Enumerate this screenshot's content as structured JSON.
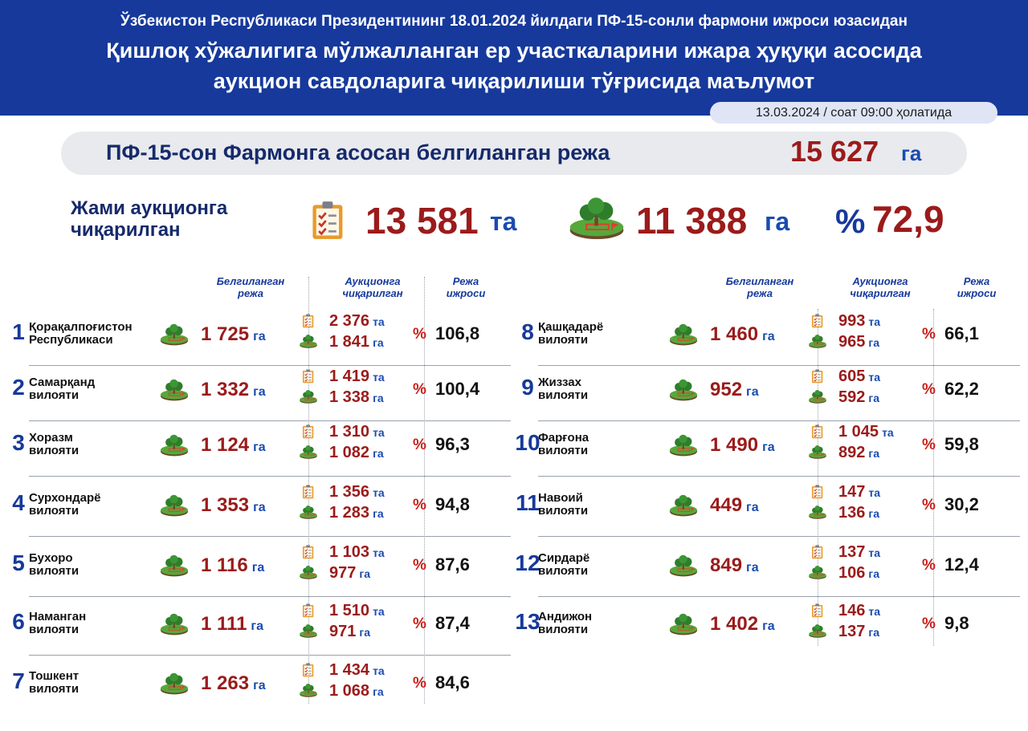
{
  "header": {
    "line1": "Ўзбекистон Республикаси Президентининг 18.01.2024 йилдаги ПФ-15-сонли фармони ижроси юзасидан",
    "line2": "Қишлоқ хўжалигига мўлжалланган ер участкаларини ижара ҳуқуқи асосида",
    "line3": "аукцион савдоларига чиқарилиши тўғрисида маълумот",
    "date": "13.03.2024 / соат 09:00 ҳолатида"
  },
  "plan": {
    "label": "ПФ-15-сон Фармонга асосан белгиланган режа",
    "value": "15 627",
    "unit": "га"
  },
  "summary": {
    "label_line1": "Жами аукционга",
    "label_line2": "чиқарилган",
    "count": "13 581",
    "count_unit": "та",
    "area": "11 388",
    "area_unit": "га",
    "percent_sign": "%",
    "percent": "72,9"
  },
  "columns": {
    "plan_l1": "Белгиланган",
    "plan_l2": "режа",
    "auction_l1": "Аукционга",
    "auction_l2": "чиқарилган",
    "exec_l1": "Режа",
    "exec_l2": "ижроси"
  },
  "icons": {
    "land": "land-plot-icon",
    "document": "checklist-document-icon"
  },
  "colors": {
    "header_bg": "#16399b",
    "value_red": "#9b1b1b",
    "unit_blue": "#1a4bb0",
    "percent_red": "#c8201a"
  },
  "regions_left": [
    {
      "num": "1",
      "name1": "Қорақалпоғистон",
      "name2": "Республикаси",
      "plan": "1 725",
      "plan_unit": "га",
      "count": "2 376",
      "count_unit": "та",
      "area": "1 841",
      "area_unit": "га",
      "pct_sign": "%",
      "pct": "106,8"
    },
    {
      "num": "2",
      "name1": "Самарқанд",
      "name2": "вилояти",
      "plan": "1 332",
      "plan_unit": "га",
      "count": "1 419",
      "count_unit": "та",
      "area": "1 338",
      "area_unit": "га",
      "pct_sign": "%",
      "pct": "100,4"
    },
    {
      "num": "3",
      "name1": "Хоразм",
      "name2": "вилояти",
      "plan": "1 124",
      "plan_unit": "га",
      "count": "1 310",
      "count_unit": "та",
      "area": "1 082",
      "area_unit": "га",
      "pct_sign": "%",
      "pct": "96,3"
    },
    {
      "num": "4",
      "name1": "Сурхондарё",
      "name2": "вилояти",
      "plan": "1 353",
      "plan_unit": "га",
      "count": "1 356",
      "count_unit": "та",
      "area": "1 283",
      "area_unit": "га",
      "pct_sign": "%",
      "pct": "94,8"
    },
    {
      "num": "5",
      "name1": "Бухоро",
      "name2": "вилояти",
      "plan": "1 116",
      "plan_unit": "га",
      "count": "1 103",
      "count_unit": "та",
      "area": "977",
      "area_unit": "га",
      "pct_sign": "%",
      "pct": "87,6"
    },
    {
      "num": "6",
      "name1": "Наманган",
      "name2": "вилояти",
      "plan": "1 111",
      "plan_unit": "га",
      "count": "1 510",
      "count_unit": "та",
      "area": "971",
      "area_unit": "га",
      "pct_sign": "%",
      "pct": "87,4"
    },
    {
      "num": "7",
      "name1": "Тошкент",
      "name2": "вилояти",
      "plan": "1 263",
      "plan_unit": "га",
      "count": "1 434",
      "count_unit": "та",
      "area": "1 068",
      "area_unit": "га",
      "pct_sign": "%",
      "pct": "84,6"
    }
  ],
  "regions_right": [
    {
      "num": "8",
      "name1": "Қашқадарё",
      "name2": "вилояти",
      "plan": "1 460",
      "plan_unit": "га",
      "count": "993",
      "count_unit": "та",
      "area": "965",
      "area_unit": "га",
      "pct_sign": "%",
      "pct": "66,1"
    },
    {
      "num": "9",
      "name1": "Жиззах",
      "name2": "вилояти",
      "plan": "952",
      "plan_unit": "га",
      "count": "605",
      "count_unit": "та",
      "area": "592",
      "area_unit": "га",
      "pct_sign": "%",
      "pct": "62,2"
    },
    {
      "num": "10",
      "name1": "Фарғона",
      "name2": "вилояти",
      "plan": "1 490",
      "plan_unit": "га",
      "count": "1 045",
      "count_unit": "та",
      "area": "892",
      "area_unit": "га",
      "pct_sign": "%",
      "pct": "59,8"
    },
    {
      "num": "11",
      "name1": "Навоий",
      "name2": "вилояти",
      "plan": "449",
      "plan_unit": "га",
      "count": "147",
      "count_unit": "та",
      "area": "136",
      "area_unit": "га",
      "pct_sign": "%",
      "pct": "30,2"
    },
    {
      "num": "12",
      "name1": "Сирдарё",
      "name2": "вилояти",
      "plan": "849",
      "plan_unit": "га",
      "count": "137",
      "count_unit": "та",
      "area": "106",
      "area_unit": "га",
      "pct_sign": "%",
      "pct": "12,4"
    },
    {
      "num": "13",
      "name1": "Андижон",
      "name2": "вилояти",
      "plan": "1 402",
      "plan_unit": "га",
      "count": "146",
      "count_unit": "та",
      "area": "137",
      "area_unit": "га",
      "pct_sign": "%",
      "pct": "9,8"
    }
  ]
}
